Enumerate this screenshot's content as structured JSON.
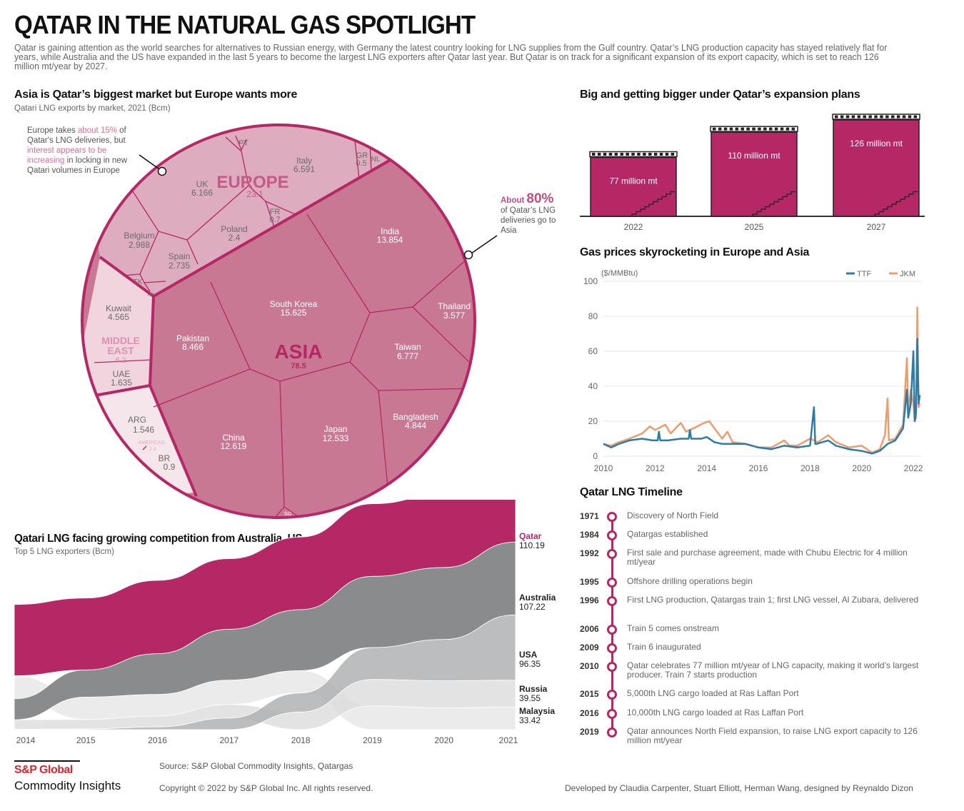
{
  "header": {
    "title": "QATAR IN THE NATURAL GAS SPOTLIGHT",
    "intro": "Qatar is gaining attention as the world searches for alternatives to Russian energy, with Germany the latest country looking for LNG supplies from the Gulf country.  Qatar’s LNG production capacity has stayed relatively flat for years, while Australia and the US have expanded in the last 5 years to become the largest LNG exporters after Qatar last year. But Qatar is on track for a significant expansion of its export capacity, which is set to reach 126 million mt/year by 2027."
  },
  "colors": {
    "accent": "#b52765",
    "asia": "#c97893",
    "europe": "#ddacbf",
    "middle_east": "#f0d5df",
    "americas": "#f5e6eb",
    "ttf": "#2e7ba7",
    "jkm": "#ee9b6e",
    "australia": "#8a8b8d",
    "usa": "#b0b1b3",
    "russia": "#dcdcdd",
    "malaysia": "#e6e6e7"
  },
  "voronoi": {
    "title": "Asia is Qatar’s biggest market but Europe wants more",
    "subtitle": "Qatari LNG exports by market, 2021 (Bcm)",
    "europe_note": {
      "p1": "Europe takes ",
      "h1": "about 15%",
      "p2": " of Qatar's LNG deliveries, but ",
      "h2": "interest appears to be increasing",
      "p3": " in locking in new Qatari volumes in Europe"
    },
    "asia_note": {
      "prefix": "About ",
      "pct": "80%",
      "rest": "of Qatar’s LNG deliveries go to Asia"
    },
    "regions": [
      {
        "name": "EUROPE",
        "value": "23.1"
      },
      {
        "name": "ASIA",
        "value": "78.5"
      },
      {
        "name": "MIDDLE EAST",
        "line1": "MIDDLE",
        "line2": "EAST",
        "value": "6.2"
      },
      {
        "name": "AMERICAS",
        "value": "2.4"
      }
    ],
    "markets": [
      {
        "name": "PT",
        "value": ""
      },
      {
        "name": "Italy",
        "value": "6.591"
      },
      {
        "name": "GR",
        "value": "0.5"
      },
      {
        "name": "NL",
        "value": ""
      },
      {
        "name": "UK",
        "value": "6.166"
      },
      {
        "name": "FR",
        "value": "0.7"
      },
      {
        "name": "Poland",
        "value": "2.4"
      },
      {
        "name": "Belgium",
        "value": "2.988"
      },
      {
        "name": "Spain",
        "value": "2.735"
      },
      {
        "name": "TK",
        "value": ""
      },
      {
        "name": "HR",
        "value": ""
      },
      {
        "name": "Kuwait",
        "value": "4.565"
      },
      {
        "name": "UAE",
        "value": "1.635"
      },
      {
        "name": "ARG",
        "value": "1.546"
      },
      {
        "name": "BR",
        "value": "0.9"
      },
      {
        "name": "India",
        "value": "13.854"
      },
      {
        "name": "Thailand",
        "value": "3.577"
      },
      {
        "name": "South Korea",
        "value": "15.625"
      },
      {
        "name": "Pakistan",
        "value": "8.466"
      },
      {
        "name": "Taiwan",
        "value": "6.777"
      },
      {
        "name": "Bangladesh",
        "value": "4.844"
      },
      {
        "name": "China",
        "value": "12.619"
      },
      {
        "name": "Japan",
        "value": "12.533"
      },
      {
        "name": "SG",
        "value": ""
      }
    ]
  },
  "capacity": {
    "title": "Big and getting bigger under Qatar’s expansion plans"
  },
  "prices": {
    "title": "Gas prices skyrocketing in Europe and Asia"
  },
  "streams": {
    "title": "Qatari LNG facing growing competition from Australia, US",
    "subtitle": "Top 5 LNG exporters (Bcm)"
  },
  "timeline": {
    "title": "Qatar LNG Timeline",
    "events": [
      {
        "year": "1971",
        "text": "Discovery of North Field"
      },
      {
        "year": "1984",
        "text": "Qatargas established"
      },
      {
        "year": "1992",
        "text": "First sale and purchase agreement, made with Chubu Electric for 4 million mt/year"
      },
      {
        "year": "1995",
        "text": "Offshore drilling operations begin"
      },
      {
        "year": "1996",
        "text": "First LNG production, Qatargas train 1; first LNG vessel, Al Zubara, delivered"
      },
      {
        "year": "2006",
        "text": "Train 5 comes onstream"
      },
      {
        "year": "2009",
        "text": "Train 6 inaugurated"
      },
      {
        "year": "2010",
        "text": "Qatar celebrates 77 million mt/year of LNG capacity, making it world’s largest producer. Train 7 starts production"
      },
      {
        "year": "2015",
        "text": "5,000th LNG cargo loaded at Ras Laffan Port"
      },
      {
        "year": "2016",
        "text": "10,000th LNG cargo loaded at Ras Laffan Port"
      },
      {
        "year": "2019",
        "text": "Qatar announces North Field expansion, to raise LNG export capacity to 126 million mt/year"
      }
    ]
  },
  "footer": {
    "brand_line1": "S&P Global",
    "brand_line2": "Commodity Insights",
    "source": "Source: S&P Global Commodity Insights, Qatargas",
    "copyright": "Copyright © 2022 by S&P Global Inc. All rights reserved.",
    "credits": "Developed by Claudia Carpenter, Stuart Elliott, Herman Wang, designed by Reynaldo Dizon"
  },
  "chart_data": [
    {
      "type": "bar",
      "title": "Big and getting bigger under Qatar’s expansion plans",
      "categories": [
        "2022",
        "2025",
        "2027"
      ],
      "values": [
        77,
        110,
        126
      ],
      "labels": [
        "77 million mt",
        "110 million mt",
        "126 million mt"
      ],
      "unit": "million mt",
      "xlabel": "",
      "ylabel": "",
      "ylim": [
        0,
        130
      ]
    },
    {
      "type": "line",
      "title": "Gas prices skyrocketing in Europe and Asia",
      "ylabel": "($/MMBtu)",
      "xlabel": "",
      "ylim": [
        0,
        100
      ],
      "xlim": [
        2010,
        2022.3
      ],
      "yticks": [
        0,
        20,
        40,
        60,
        80,
        100
      ],
      "xticks": [
        "2010",
        "2012",
        "2014",
        "2016",
        "2018",
        "2020",
        "2022"
      ],
      "grid": true,
      "legend": "top-right",
      "series": [
        {
          "name": "TTF",
          "x": [
            2010,
            2010.3,
            2010.6,
            2011,
            2011.5,
            2011.9,
            2012.1,
            2012.15,
            2012.2,
            2012.5,
            2013,
            2013.3,
            2013.35,
            2013.4,
            2013.8,
            2014,
            2014.3,
            2014.6,
            2015,
            2015.5,
            2016,
            2016.5,
            2017,
            2017.5,
            2018,
            2018.15,
            2018.2,
            2018.25,
            2018.7,
            2019,
            2019.5,
            2020,
            2020.4,
            2020.7,
            2021,
            2021.3,
            2021.6,
            2021.75,
            2021.8,
            2021.9,
            2022,
            2022.05,
            2022.1,
            2022.15,
            2022.2,
            2022.25
          ],
          "y": [
            7,
            5,
            7,
            9,
            10,
            9,
            9,
            14,
            9,
            9,
            10,
            10,
            15,
            10,
            10,
            11,
            8,
            7,
            7,
            7,
            5,
            4,
            6,
            5,
            6,
            28,
            7,
            7,
            9,
            6,
            4,
            3,
            1.5,
            3,
            7,
            9,
            16,
            38,
            22,
            30,
            60,
            20,
            25,
            67,
            30,
            35
          ]
        },
        {
          "name": "JKM",
          "x": [
            2010,
            2010.3,
            2010.6,
            2011,
            2011.5,
            2011.8,
            2012,
            2012.4,
            2012.6,
            2013,
            2013.2,
            2013.5,
            2013.9,
            2014.1,
            2014.4,
            2014.6,
            2014.8,
            2015,
            2015.5,
            2016,
            2016.5,
            2017,
            2017.2,
            2017.5,
            2018,
            2018.3,
            2018.7,
            2019,
            2019.5,
            2020,
            2020.4,
            2020.7,
            2020.9,
            2021,
            2021.05,
            2021.3,
            2021.6,
            2021.75,
            2021.8,
            2021.9,
            2022,
            2022.05,
            2022.1,
            2022.15,
            2022.2,
            2022.25
          ],
          "y": [
            7,
            6,
            8,
            10,
            13,
            17,
            15,
            18,
            13,
            19,
            14,
            16,
            19,
            20,
            14,
            10,
            14,
            8,
            7,
            5,
            5,
            9,
            6,
            6,
            10,
            8,
            12,
            8,
            5,
            6,
            2,
            4,
            12,
            33,
            9,
            10,
            18,
            56,
            25,
            38,
            30,
            20,
            22,
            85,
            28,
            30
          ]
        }
      ]
    },
    {
      "type": "area",
      "title": "Qatari LNG facing growing competition from Australia, US",
      "subtitle": "Top 5 LNG exporters (Bcm)",
      "x": [
        "2014",
        "2015",
        "2016",
        "2017",
        "2018",
        "2019",
        "2020",
        "2021"
      ],
      "series": [
        {
          "name": "Qatar",
          "values": [
            105,
            106,
            108,
            104,
            107,
            107,
            108,
            110.19
          ],
          "end_label": "110.19"
        },
        {
          "name": "Australia",
          "values": [
            31,
            40,
            60,
            75,
            90,
            105,
            106,
            107.22
          ],
          "end_label": "107.22"
        },
        {
          "name": "USA",
          "values": [
            0.5,
            1,
            4,
            17,
            28,
            47,
            61,
            96.35
          ],
          "end_label": "96.35"
        },
        {
          "name": "Russia",
          "values": [
            14,
            14,
            16,
            20,
            26,
            39,
            40,
            39.55
          ],
          "end_label": "39.55"
        },
        {
          "name": "Malaysia",
          "values": [
            34,
            33,
            32,
            36,
            33,
            35,
            32,
            33.42
          ],
          "end_label": "33.42"
        }
      ],
      "ordering": "ranked streams (largest at top), smooth transitions",
      "legend": "right end labels"
    }
  ]
}
